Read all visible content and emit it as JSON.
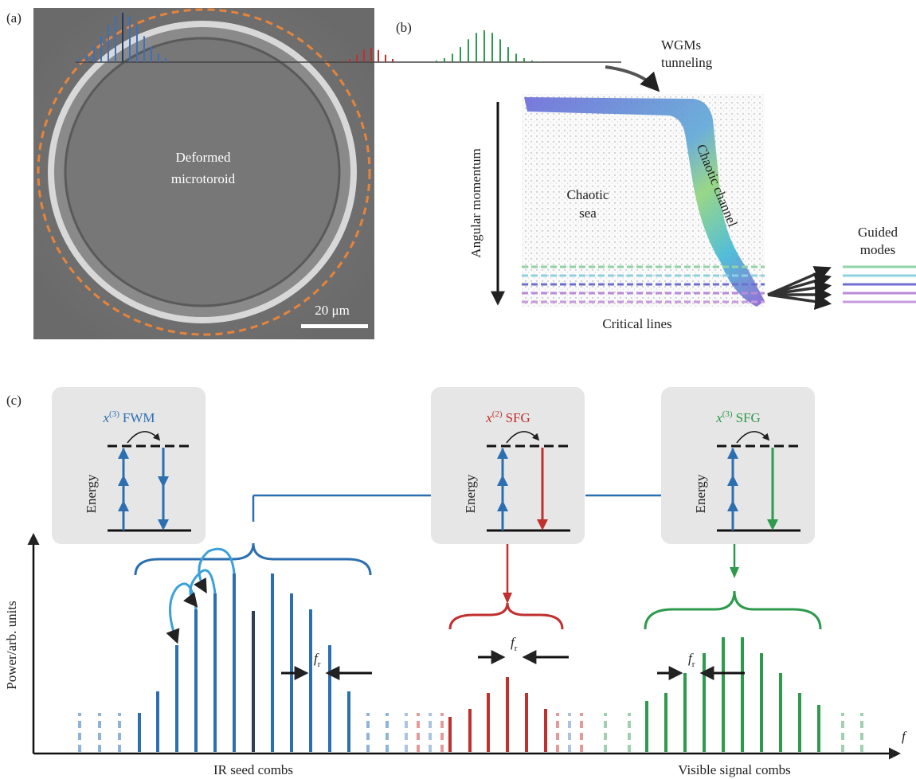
{
  "panel_a": {
    "label": "(a)",
    "caption": [
      "Deformed",
      "microtoroid"
    ],
    "scale_bar": "20 μm"
  },
  "panel_b": {
    "label": "(b)",
    "tunneling": [
      "WGMs",
      "tunneling"
    ],
    "y_axis": "Angular momentum",
    "chaotic_sea": [
      "Chaotic",
      "sea"
    ],
    "chaotic_channel": "Chaotic channel",
    "guided_modes": [
      "Guided",
      "modes"
    ],
    "critical_lines": "Critical lines"
  },
  "panel_c": {
    "label": "(c)",
    "processes": [
      {
        "symbol": "x",
        "order": "(3)",
        "process": "FWM",
        "energy": "Energy"
      },
      {
        "symbol": "x",
        "order": "(2)",
        "process": "SFG",
        "energy": "Energy"
      },
      {
        "symbol": "x",
        "order": "(3)",
        "process": "SFG",
        "energy": "Energy"
      }
    ],
    "y_axis": "Power/arb. units",
    "x_axis": "f",
    "spacing": [
      {
        "symbol": "f",
        "sub": "r"
      },
      {
        "symbol": "f",
        "sub": "r"
      },
      {
        "symbol": "f",
        "sub": "r"
      }
    ],
    "ir_label": "IR seed combs",
    "visible_label": "Visible signal combs"
  }
}
